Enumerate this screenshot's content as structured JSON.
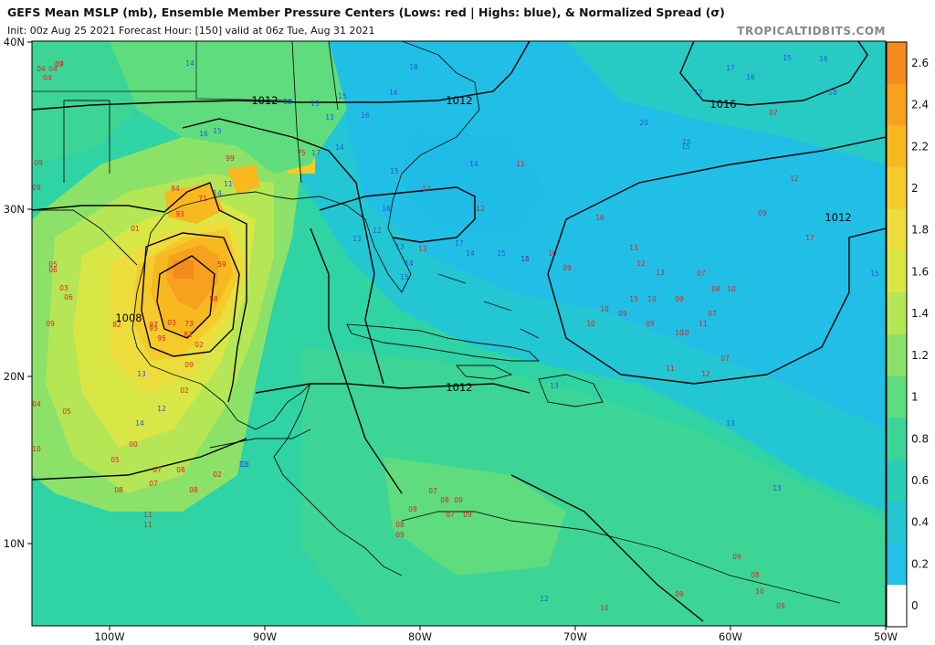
{
  "header": {
    "title": "GEFS Mean MSLP (mb), Ensemble Member Pressure Centers (Lows: red | Highs: blue), & Normalized Spread (σ)",
    "subtitle": "Init: 00z Aug 25 2021    Forecast Hour: [150]   valid at 06z Tue, Aug 31 2021",
    "credit": "TROPICALTIDBITS.COM"
  },
  "axes": {
    "lat_labels": [
      "40N",
      "30N",
      "20N",
      "10N"
    ],
    "lon_labels": [
      "100W",
      "90W",
      "80W",
      "70W",
      "60W",
      "50W"
    ]
  },
  "colorbar": {
    "labels": [
      "2.6",
      "2.4",
      "2.2",
      "2",
      "1.8",
      "1.6",
      "1.4",
      "1.2",
      "1",
      "0.8",
      "0.6",
      "0.4",
      "0.2",
      "0"
    ],
    "colors": [
      "#f58a1f",
      "#f7a11f",
      "#f8b81f",
      "#f4cb2b",
      "#ecdd3c",
      "#d8e746",
      "#b5e655",
      "#8ce268",
      "#5fdc7e",
      "#3cd596",
      "#2bcdb4",
      "#24c6cf",
      "#23c0e8",
      "#ffffff"
    ]
  },
  "isobars": {
    "labels": [
      "1012",
      "1012",
      "1016",
      "1012",
      "1008",
      "1012"
    ]
  },
  "pressure_centers": {
    "lows_color": "#dd2222",
    "highs_color": "#2255dd",
    "lows": [
      "07",
      "04",
      "04",
      "04",
      "09",
      "09",
      "05",
      "06",
      "03",
      "06",
      "09",
      "01",
      "84",
      "93",
      "71",
      "99",
      "75",
      "59",
      "58",
      "82",
      "73",
      "03",
      "97",
      "95",
      "93",
      "82",
      "02",
      "09",
      "02",
      "04",
      "05",
      "10",
      "00",
      "05",
      "07",
      "08",
      "07",
      "02",
      "08",
      "08",
      "11",
      "11",
      "07",
      "08",
      "09",
      "09",
      "07",
      "09",
      "08",
      "09",
      "11",
      "12",
      "13",
      "13",
      "14",
      "16",
      "13",
      "09",
      "10",
      "12",
      "13",
      "07",
      "10",
      "09",
      "13",
      "10",
      "09",
      "08",
      "10",
      "10",
      "09",
      "07",
      "10",
      "11",
      "10",
      "11",
      "12",
      "07",
      "12",
      "17",
      "07",
      "09",
      "09",
      "08",
      "10",
      "09",
      "09",
      "10",
      "09"
    ],
    "highs": [
      "14",
      "13",
      "18",
      "15",
      "16",
      "16",
      "15",
      "15",
      "13",
      "16",
      "14",
      "17",
      "14",
      "15",
      "17",
      "15",
      "20",
      "15",
      "15",
      "16",
      "16",
      "18",
      "17",
      "17",
      "14",
      "15",
      "15",
      "16",
      "12",
      "13",
      "13",
      "14",
      "15",
      "11",
      "14",
      "13",
      "14",
      "12",
      "13",
      "13",
      "13",
      "13",
      "13",
      "12",
      "15"
    ]
  }
}
